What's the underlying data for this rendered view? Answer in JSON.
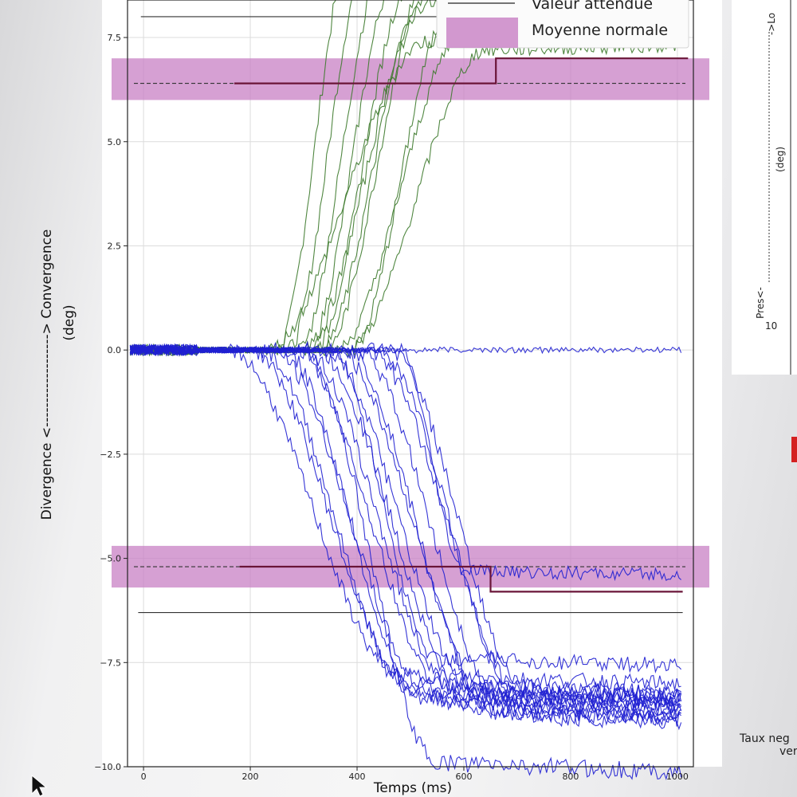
{
  "chart_data": {
    "type": "line",
    "xlabel": "Temps (ms)",
    "ylabel_top": "Divergence <-------------------> Convergence",
    "ylabel_unit": "(deg)",
    "xlim": [
      -30,
      1030
    ],
    "ylim": [
      -10.0,
      8.4
    ],
    "xticks": [
      0,
      200,
      400,
      600,
      800,
      1000
    ],
    "yticks": [
      -10.0,
      -7.5,
      -5.0,
      -2.5,
      0.0,
      2.5,
      5.0,
      7.5
    ],
    "ytick_labels": [
      "−10.0",
      "−7.5",
      "−5.0",
      "−2.5",
      "0.0",
      "2.5",
      "5.0",
      "7.5"
    ],
    "grid": true,
    "legend": {
      "position": "top-right",
      "items": [
        {
          "label": "Valeur attendue",
          "kind": "line",
          "color": "#222222"
        },
        {
          "label": "Moyenne normale",
          "kind": "band",
          "color": "#c880c4"
        }
      ]
    },
    "bands": [
      {
        "name": "convergence",
        "y_center": 6.4,
        "y_low": 6.0,
        "y_high": 7.0,
        "x_start": -30,
        "x_end": 1030
      },
      {
        "name": "divergence",
        "y_center": -5.2,
        "y_low": -5.7,
        "y_high": -4.7,
        "x_start": -30,
        "x_end": 1030
      }
    ],
    "expected_lines": [
      {
        "y": 8.0,
        "x_start": -5,
        "x_end": 580
      },
      {
        "y": -6.3,
        "x_start": -10,
        "x_end": 1010
      }
    ],
    "step_lines": [
      {
        "points": [
          [
            170,
            6.4
          ],
          [
            660,
            6.4
          ],
          [
            660,
            7.0
          ],
          [
            1020,
            7.0
          ]
        ]
      },
      {
        "points": [
          [
            180,
            -5.2
          ],
          [
            650,
            -5.2
          ],
          [
            650,
            -5.8
          ],
          [
            1010,
            -5.8
          ]
        ]
      }
    ],
    "colors": {
      "green": "#3d7a2c",
      "blue": "#1f1fd2",
      "band": "#c880c4",
      "step": "#6a1538",
      "expected": "#333333"
    },
    "series": [
      {
        "group": "green",
        "onset": 250,
        "dur": 140,
        "end": 9.6
      },
      {
        "group": "green",
        "onset": 270,
        "dur": 150,
        "end": 9.4
      },
      {
        "group": "green",
        "onset": 290,
        "dur": 160,
        "end": 9.2
      },
      {
        "group": "green",
        "onset": 305,
        "dur": 170,
        "end": 9.0
      },
      {
        "group": "green",
        "onset": 320,
        "dur": 180,
        "end": 8.8
      },
      {
        "group": "green",
        "onset": 330,
        "dur": 200,
        "end": 8.7
      },
      {
        "group": "green",
        "onset": 340,
        "dur": 190,
        "end": 8.5
      },
      {
        "group": "green",
        "onset": 300,
        "dur": 230,
        "end": 8.3
      },
      {
        "group": "green",
        "onset": 390,
        "dur": 180,
        "end": 8.0
      },
      {
        "group": "green",
        "onset": 360,
        "dur": 240,
        "end": 7.6
      },
      {
        "group": "green",
        "onset": 230,
        "dur": 300,
        "end": 7.4
      },
      {
        "group": "green",
        "onset": 380,
        "dur": 260,
        "end": 7.2
      },
      {
        "group": "blue",
        "onset": 160,
        "dur": 320,
        "end": -7.8
      },
      {
        "group": "blue",
        "onset": 200,
        "dur": 300,
        "end": -8.0
      },
      {
        "group": "blue",
        "onset": 220,
        "dur": 280,
        "end": -8.2
      },
      {
        "group": "blue",
        "onset": 240,
        "dur": 300,
        "end": -8.3
      },
      {
        "group": "blue",
        "onset": 260,
        "dur": 260,
        "end": -8.4
      },
      {
        "group": "blue",
        "onset": 280,
        "dur": 300,
        "end": -8.5
      },
      {
        "group": "blue",
        "onset": 300,
        "dur": 280,
        "end": -8.1
      },
      {
        "group": "blue",
        "onset": 320,
        "dur": 300,
        "end": -8.6
      },
      {
        "group": "blue",
        "onset": 340,
        "dur": 280,
        "end": -8.2
      },
      {
        "group": "blue",
        "onset": 360,
        "dur": 300,
        "end": -8.7
      },
      {
        "group": "blue",
        "onset": 380,
        "dur": 260,
        "end": -8.3
      },
      {
        "group": "blue",
        "onset": 400,
        "dur": 280,
        "end": -8.6
      },
      {
        "group": "blue",
        "onset": 420,
        "dur": 300,
        "end": -8.4
      },
      {
        "group": "blue",
        "onset": 440,
        "dur": 280,
        "end": -8.8
      },
      {
        "group": "blue",
        "onset": 460,
        "dur": 260,
        "end": -8.2
      },
      {
        "group": "blue",
        "onset": 300,
        "dur": 250,
        "end": -9.9
      },
      {
        "group": "blue",
        "onset": 350,
        "dur": 200,
        "end": -7.4
      },
      {
        "group": "blue",
        "onset": 480,
        "dur": 120,
        "end": -5.3
      },
      {
        "group": "blue",
        "onset": 1000,
        "dur": 10,
        "end": 0.0
      }
    ]
  },
  "right_panel": {
    "top_fragment": "->Lo",
    "deg_label": "(deg)",
    "pres_label": "Pres<-",
    "tick_fragment": "10",
    "bottom_text_line1": "Taux neg",
    "bottom_text_line2": "ver"
  }
}
